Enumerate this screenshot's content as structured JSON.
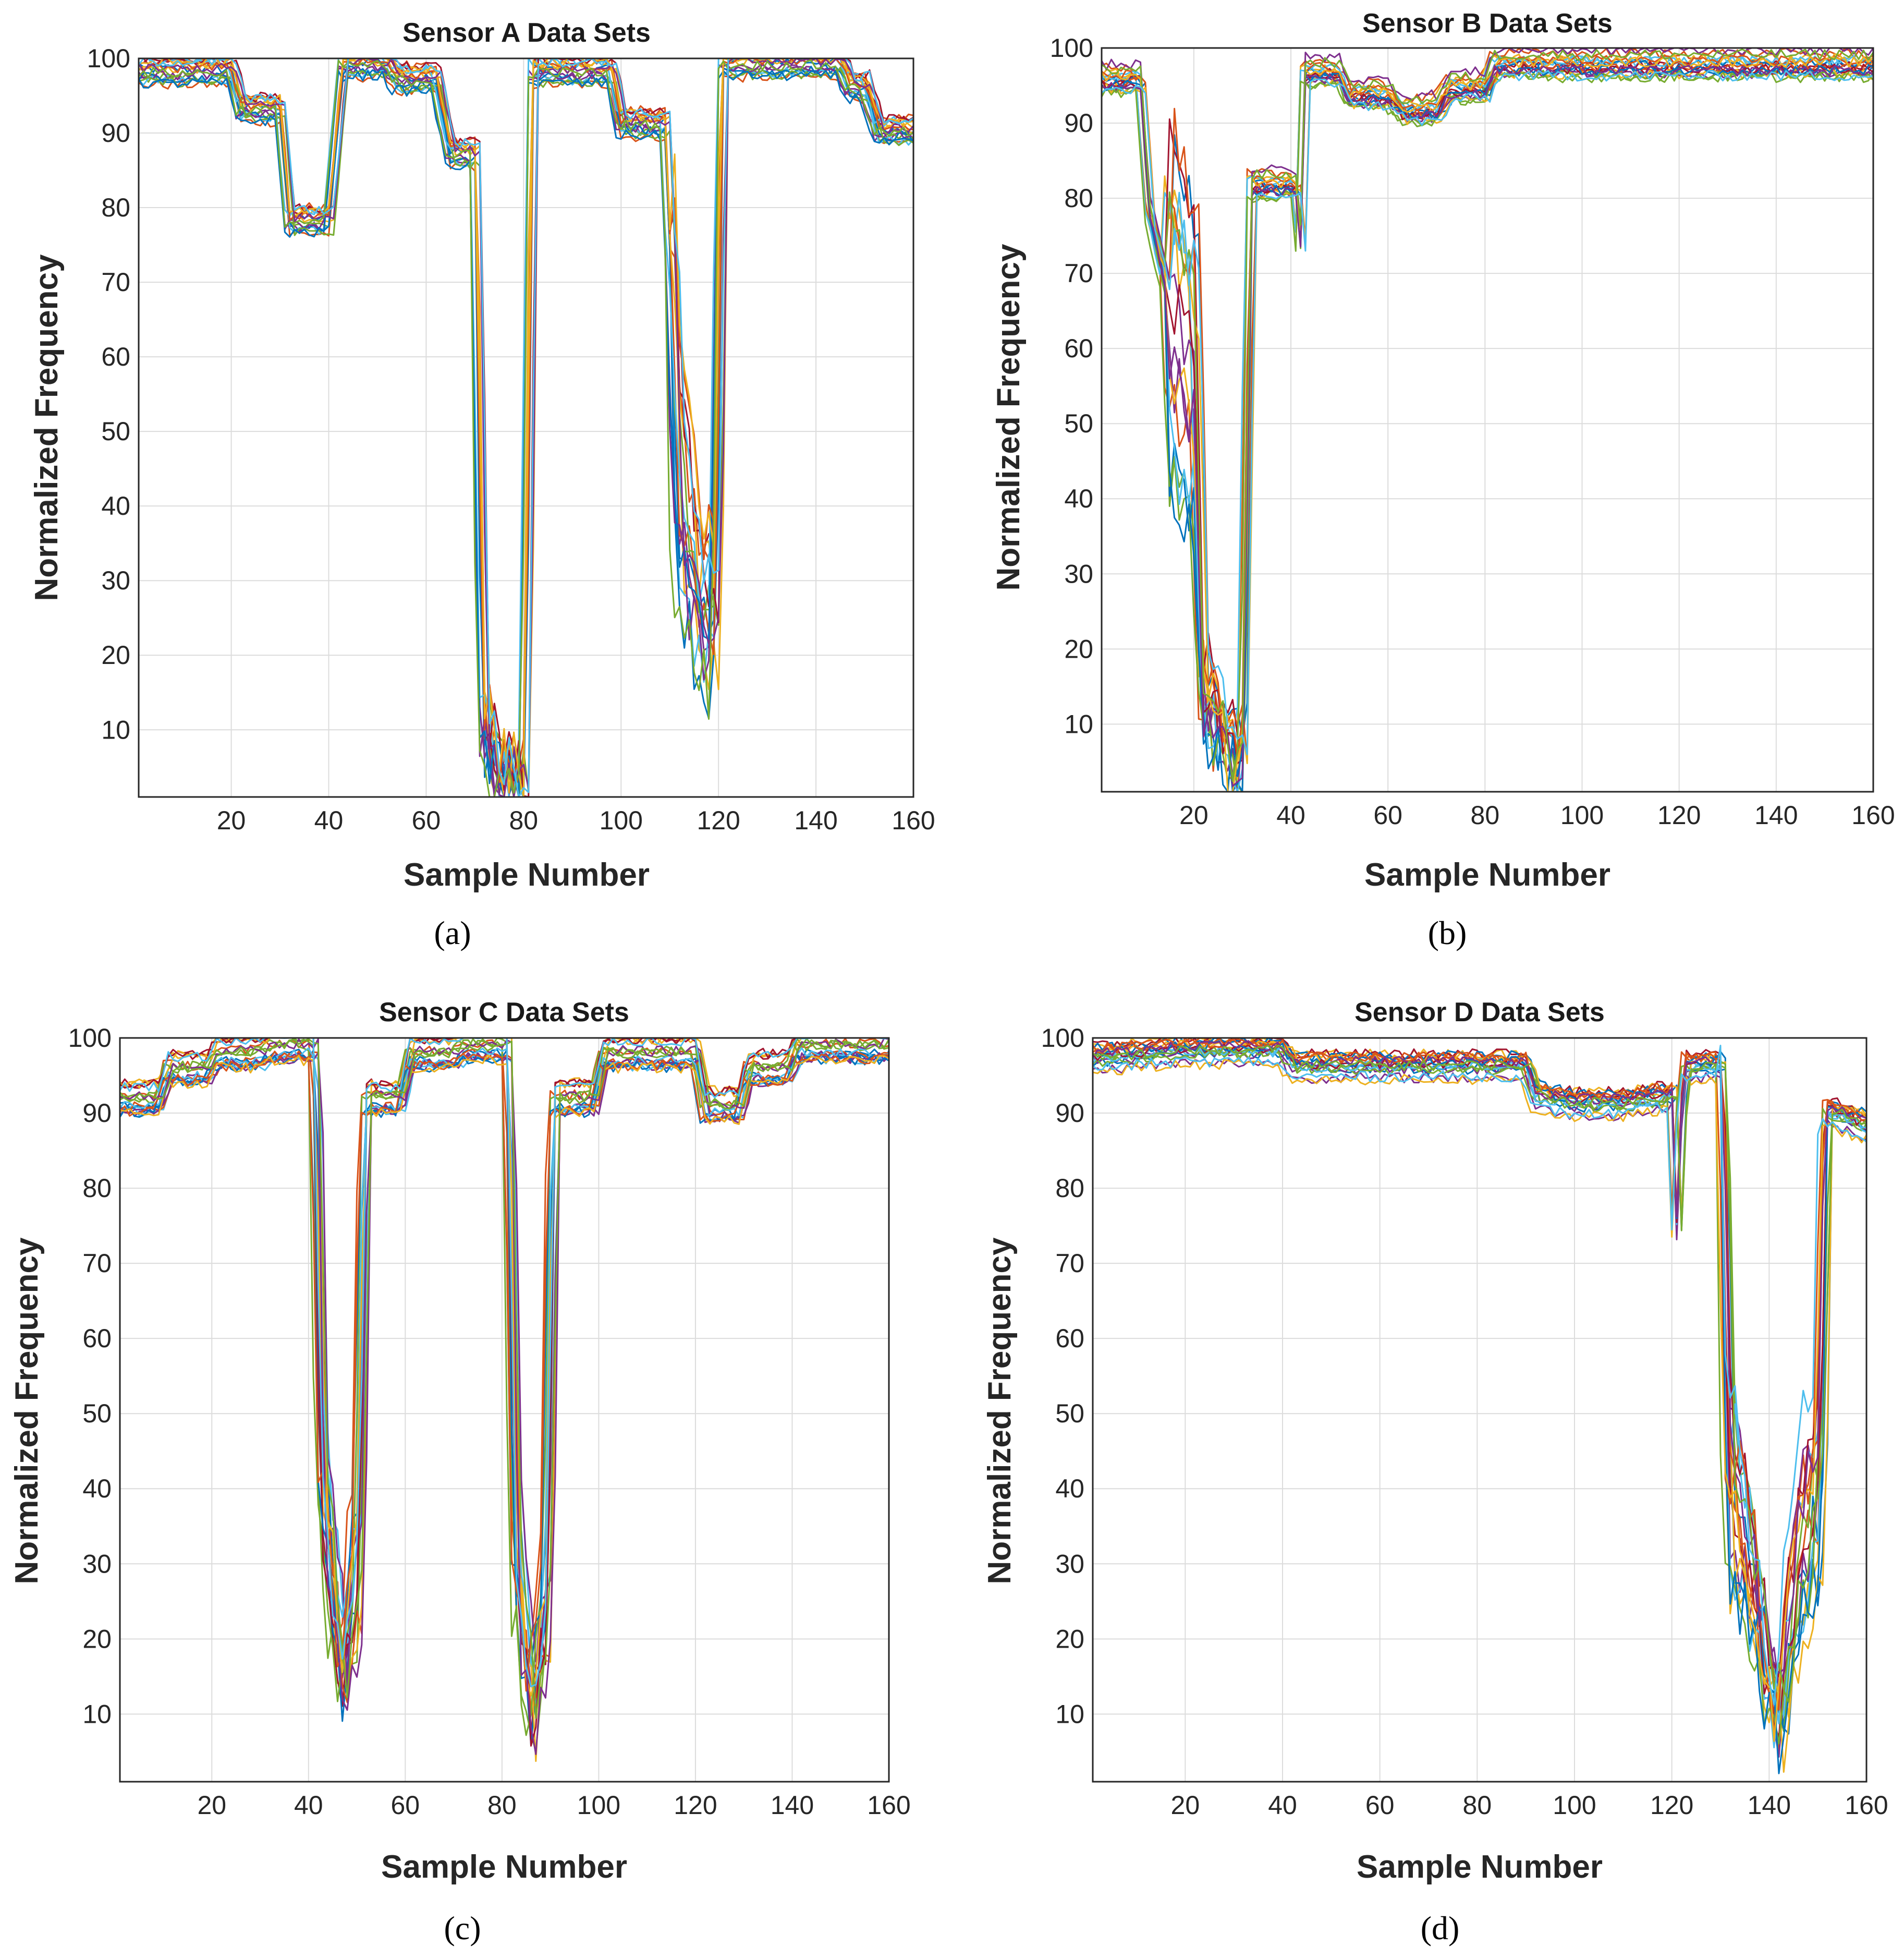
{
  "chart_data": [
    {
      "type": "line",
      "title": "Sensor A Data Sets",
      "xlabel": "Sample Number",
      "ylabel": "Normalized Frequency",
      "caption": "(a)",
      "xlim": [
        1,
        160
      ],
      "ylim": [
        1,
        100
      ],
      "xticks": [
        20,
        40,
        60,
        80,
        100,
        120,
        140,
        160
      ],
      "yticks": [
        10,
        20,
        30,
        40,
        50,
        60,
        70,
        80,
        90,
        100
      ],
      "grid": true,
      "series_count": 20,
      "profile": [
        [
          1,
          98
        ],
        [
          20,
          98
        ],
        [
          22,
          93
        ],
        [
          30,
          93
        ],
        [
          32,
          78
        ],
        [
          40,
          78
        ],
        [
          43,
          99
        ],
        [
          52,
          99
        ],
        [
          54,
          97
        ],
        [
          62,
          97
        ],
        [
          65,
          87
        ],
        [
          70,
          87
        ],
        [
          72,
          10
        ],
        [
          76,
          4
        ],
        [
          80,
          4
        ],
        [
          82,
          98
        ],
        [
          98,
          98
        ],
        [
          100,
          91
        ],
        [
          109,
          91
        ],
        [
          112,
          45
        ],
        [
          116,
          28
        ],
        [
          119,
          25
        ],
        [
          121,
          99
        ],
        [
          145,
          99
        ],
        [
          147,
          96
        ],
        [
          150,
          96
        ],
        [
          153,
          90
        ],
        [
          160,
          90
        ]
      ]
    },
    {
      "type": "line",
      "title": "Sensor B Data Sets",
      "xlabel": "Sample Number",
      "ylabel": "Normalized Frequency",
      "caption": "(b)",
      "xlim": [
        1,
        160
      ],
      "ylim": [
        1,
        100
      ],
      "xticks": [
        20,
        40,
        60,
        80,
        100,
        120,
        140,
        160
      ],
      "yticks": [
        10,
        20,
        30,
        40,
        50,
        60,
        70,
        80,
        90,
        100
      ],
      "grid": true,
      "series_count": 20,
      "profile": [
        [
          1,
          96
        ],
        [
          9,
          96
        ],
        [
          11,
          78
        ],
        [
          14,
          70
        ],
        [
          17,
          62
        ],
        [
          20,
          58
        ],
        [
          22,
          15
        ],
        [
          27,
          6
        ],
        [
          30,
          6
        ],
        [
          32,
          82
        ],
        [
          41,
          82
        ],
        [
          42,
          75
        ],
        [
          43,
          97
        ],
        [
          50,
          97
        ],
        [
          52,
          94
        ],
        [
          60,
          94
        ],
        [
          63,
          92
        ],
        [
          70,
          92
        ],
        [
          73,
          95
        ],
        [
          80,
          95
        ],
        [
          82,
          98
        ],
        [
          160,
          98
        ]
      ]
    },
    {
      "type": "line",
      "title": "Sensor C Data Sets",
      "xlabel": "Sample Number",
      "ylabel": "Normalized Frequency",
      "caption": "(c)",
      "xlim": [
        1,
        160
      ],
      "ylim": [
        1,
        100
      ],
      "xticks": [
        20,
        40,
        60,
        80,
        100,
        120,
        140,
        160
      ],
      "yticks": [
        10,
        20,
        30,
        40,
        50,
        60,
        70,
        80,
        90,
        100
      ],
      "grid": true,
      "series_count": 20,
      "profile": [
        [
          1,
          92
        ],
        [
          9,
          92
        ],
        [
          11,
          96
        ],
        [
          19,
          96
        ],
        [
          21,
          98
        ],
        [
          30,
          98
        ],
        [
          32,
          99
        ],
        [
          41,
          99
        ],
        [
          43,
          40
        ],
        [
          47,
          15
        ],
        [
          50,
          30
        ],
        [
          52,
          92
        ],
        [
          59,
          92
        ],
        [
          61,
          98
        ],
        [
          70,
          98
        ],
        [
          72,
          99
        ],
        [
          81,
          99
        ],
        [
          83,
          30
        ],
        [
          86,
          10
        ],
        [
          89,
          25
        ],
        [
          91,
          92
        ],
        [
          99,
          92
        ],
        [
          101,
          98
        ],
        [
          120,
          98
        ],
        [
          122,
          91
        ],
        [
          129,
          91
        ],
        [
          131,
          96
        ],
        [
          139,
          96
        ],
        [
          141,
          99
        ],
        [
          160,
          99
        ]
      ]
    },
    {
      "type": "line",
      "title": "Sensor D Data Sets",
      "xlabel": "Sample Number",
      "ylabel": "Normalized Frequency",
      "caption": "(d)",
      "xlim": [
        1,
        160
      ],
      "ylim": [
        1,
        100
      ],
      "xticks": [
        20,
        40,
        60,
        80,
        100,
        120,
        140,
        160
      ],
      "yticks": [
        10,
        20,
        30,
        40,
        50,
        60,
        70,
        80,
        90,
        100
      ],
      "grid": true,
      "series_count": 20,
      "profile": [
        [
          1,
          97
        ],
        [
          20,
          98
        ],
        [
          40,
          98
        ],
        [
          42,
          96
        ],
        [
          60,
          96
        ],
        [
          80,
          96
        ],
        [
          82,
          96
        ],
        [
          90,
          96
        ],
        [
          92,
          92
        ],
        [
          100,
          91
        ],
        [
          110,
          91
        ],
        [
          120,
          92
        ],
        [
          121,
          75
        ],
        [
          122,
          90
        ],
        [
          123,
          96
        ],
        [
          130,
          96
        ],
        [
          132,
          40
        ],
        [
          136,
          30
        ],
        [
          140,
          15
        ],
        [
          142,
          10
        ],
        [
          146,
          30
        ],
        [
          150,
          40
        ],
        [
          152,
          90
        ],
        [
          160,
          88
        ]
      ]
    }
  ],
  "series_colors": [
    "#0072bd",
    "#d95319",
    "#edb120",
    "#7e2f8e",
    "#77ac30",
    "#4dbeee",
    "#a2142f"
  ]
}
